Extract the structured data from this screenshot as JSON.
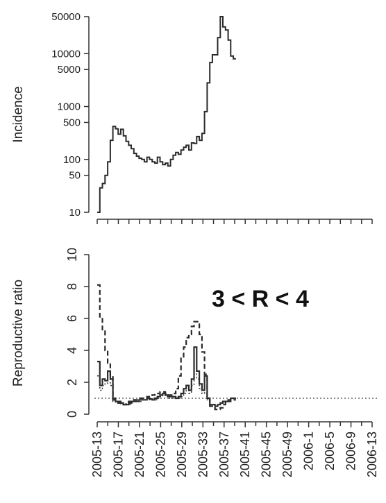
{
  "chart_data": [
    {
      "type": "line",
      "step": true,
      "ylabel": "Incidence",
      "yscale": "log",
      "yticks": [
        10,
        50,
        100,
        500,
        1000,
        5000,
        10000,
        50000
      ],
      "yticklabels": [
        "10",
        "50",
        "100",
        "500",
        "1000",
        "5000",
        "10000",
        "50000"
      ],
      "ylim": [
        10,
        50000
      ],
      "xlim": [
        13,
        118
      ],
      "x_tick_count": 27,
      "grid": false,
      "series": [
        {
          "style": "solid",
          "color": "#2a2a2a",
          "x": [
            13,
            14,
            15,
            16,
            17,
            18,
            19,
            20,
            21,
            22,
            23,
            24,
            25,
            26,
            27,
            28,
            29,
            30,
            31,
            32,
            33,
            34,
            35,
            36,
            37,
            38,
            39,
            40,
            41,
            42,
            43,
            44,
            45,
            46,
            47,
            48,
            49,
            50,
            51,
            52,
            53,
            54,
            55,
            56,
            57,
            58,
            59,
            60,
            61,
            62,
            63,
            64,
            65
          ],
          "values": [
            10,
            29,
            35,
            50,
            90,
            230,
            420,
            380,
            300,
            370,
            280,
            220,
            185,
            160,
            130,
            115,
            105,
            100,
            90,
            110,
            100,
            90,
            85,
            110,
            90,
            80,
            85,
            75,
            100,
            120,
            135,
            125,
            150,
            170,
            185,
            150,
            205,
            200,
            270,
            230,
            310,
            800,
            2800,
            6800,
            9500,
            9500,
            20000,
            50000,
            32000,
            28000,
            18000,
            9000,
            8000
          ]
        }
      ]
    },
    {
      "type": "line",
      "step": true,
      "ylabel": "Reproductive ratio",
      "yticks": [
        0,
        2,
        4,
        6,
        8,
        10
      ],
      "yticklabels": [
        "0",
        "2",
        "4",
        "6",
        "8",
        "10"
      ],
      "ylim": [
        0,
        10
      ],
      "xlim": [
        13,
        118
      ],
      "xticks": [
        "2005-13",
        "2005-17",
        "2005-21",
        "2005-25",
        "2005-29",
        "2005-33",
        "2005-37",
        "2005-41",
        "2005-45",
        "2005-49",
        "2006-1",
        "2006-5",
        "2006-9",
        "2006-13"
      ],
      "reference_line": 1.0,
      "annotation": "3 < R < 4",
      "grid": false,
      "series": [
        {
          "style": "solid",
          "x": [
            13,
            14,
            15,
            16,
            17,
            18,
            19,
            20,
            21,
            22,
            23,
            24,
            25,
            26,
            27,
            28,
            29,
            30,
            31,
            32,
            33,
            34,
            35,
            36,
            37,
            38,
            39,
            40,
            41,
            42,
            43,
            44,
            45,
            46,
            47,
            48,
            49,
            50,
            51,
            52,
            53,
            54,
            55,
            56,
            57,
            58,
            59,
            60,
            61,
            62,
            63,
            64,
            65
          ],
          "values": [
            3.3,
            1.8,
            2.2,
            2.1,
            2.7,
            2.2,
            0.9,
            0.8,
            0.8,
            0.7,
            0.6,
            0.6,
            0.7,
            0.8,
            0.8,
            0.8,
            0.9,
            0.9,
            0.9,
            1.0,
            0.95,
            0.9,
            1.0,
            1.1,
            1.2,
            1.3,
            1.2,
            1.1,
            1.1,
            1.1,
            1.0,
            1.1,
            1.3,
            1.6,
            1.8,
            1.5,
            2.2,
            4.2,
            2.7,
            1.9,
            1.5,
            2.4,
            1.0,
            0.6,
            0.6,
            0.5,
            0.6,
            0.7,
            0.8,
            0.8,
            0.9,
            1.0,
            1.0
          ]
        },
        {
          "style": "dashed",
          "x": [
            13,
            14,
            15,
            16,
            17,
            18,
            19,
            20,
            21,
            22,
            23,
            24,
            25,
            26,
            27,
            28,
            29,
            30,
            31,
            32,
            33,
            34,
            35,
            36,
            37,
            38,
            39,
            40,
            41,
            42,
            43,
            44,
            45,
            46,
            47,
            48,
            49,
            50,
            51,
            52,
            53,
            54,
            55,
            56,
            57,
            58,
            59,
            60,
            61,
            62,
            63,
            64,
            65
          ],
          "values": [
            8.1,
            6.1,
            5.2,
            4.0,
            3.2,
            2.4,
            1.0,
            0.8,
            0.7,
            0.6,
            0.6,
            0.7,
            0.8,
            0.9,
            0.9,
            0.9,
            1.0,
            1.0,
            1.0,
            1.1,
            1.1,
            1.2,
            1.3,
            1.3,
            1.4,
            1.4,
            1.3,
            1.2,
            1.2,
            1.3,
            1.6,
            2.4,
            3.5,
            4.2,
            4.8,
            5.0,
            5.5,
            5.8,
            5.8,
            5.0,
            3.9,
            2.5,
            1.0,
            0.5,
            0.4,
            0.3,
            0.3,
            0.4,
            0.6,
            0.7,
            0.8,
            0.9,
            0.9
          ]
        },
        {
          "style": "dotted",
          "x": [
            13,
            14,
            15,
            16,
            17,
            18,
            19,
            20,
            21,
            22,
            23,
            24,
            25,
            26,
            27,
            28,
            29,
            30,
            31,
            32,
            33,
            34,
            35,
            36,
            37,
            38,
            39,
            40,
            41,
            42,
            43,
            44,
            45,
            46,
            47,
            48,
            49,
            50,
            51,
            52,
            53,
            54,
            55,
            56,
            57,
            58,
            59,
            60,
            61,
            62,
            63,
            64,
            65
          ],
          "values": [
            2.4,
            1.5,
            1.8,
            1.9,
            2.2,
            1.8,
            0.8,
            0.7,
            0.7,
            0.6,
            0.6,
            0.6,
            0.6,
            0.7,
            0.8,
            0.8,
            0.8,
            0.9,
            0.9,
            0.9,
            0.9,
            0.9,
            0.9,
            1.0,
            1.1,
            1.2,
            1.1,
            1.0,
            1.0,
            1.0,
            1.0,
            1.0,
            1.1,
            1.3,
            1.5,
            1.3,
            1.8,
            3.2,
            2.2,
            1.6,
            1.3,
            2.0,
            0.9,
            0.6,
            0.6,
            0.5,
            0.6,
            0.7,
            0.7,
            0.8,
            0.9,
            1.0,
            1.0
          ]
        }
      ]
    }
  ]
}
